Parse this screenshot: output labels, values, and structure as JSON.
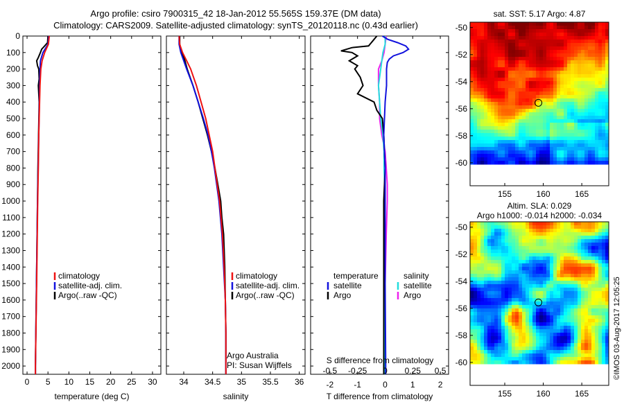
{
  "header": {
    "line1": "Argo profile: csiro 7900315_42 18-Jan-2012 55.565S 159.37E (DM data)",
    "line2": "Climatology: CARS2009. Satellite-adjusted climatology: synTS_20120118.nc (0.43d earlier)"
  },
  "colors": {
    "climatology": "#ee1111",
    "satellite": "#1111dd",
    "argo": "#000000",
    "sat_salinity": "#22dddd",
    "argo_salinity": "#ee22ee"
  },
  "chart_data": [
    {
      "type": "line",
      "name": "temperature-panel",
      "xlabel": "temperature (deg C)",
      "ylabel": "",
      "xlim": [
        -1,
        32
      ],
      "ylim": [
        2050,
        0
      ],
      "xticks": [
        0,
        5,
        10,
        15,
        20,
        25,
        30
      ],
      "yticks": [
        0,
        100,
        200,
        300,
        400,
        500,
        600,
        700,
        800,
        900,
        1000,
        1100,
        1200,
        1300,
        1400,
        1500,
        1600,
        1700,
        1800,
        1900,
        2000
      ],
      "legend": [
        "climatology",
        "satellite-adj. clim.",
        "Argo(..raw -QC)"
      ],
      "series": [
        {
          "name": "climatology",
          "depth": [
            0,
            50,
            100,
            150,
            200,
            300,
            400,
            600,
            800,
            1000,
            1500,
            2000,
            2050
          ],
          "values": [
            5.3,
            5.1,
            4.2,
            3.6,
            3.3,
            3.1,
            3.0,
            2.8,
            2.7,
            2.55,
            2.3,
            2.0,
            2.0
          ]
        },
        {
          "name": "satellite-adj. clim.",
          "depth": [
            0,
            50,
            100,
            150,
            200,
            300,
            400,
            600,
            800,
            1000,
            1500,
            2000,
            2050
          ],
          "values": [
            5.2,
            5.0,
            3.8,
            3.2,
            3.1,
            3.0,
            2.95,
            2.8,
            2.65,
            2.5,
            2.25,
            2.0,
            2.0
          ]
        },
        {
          "name": "Argo(..raw -QC)",
          "depth": [
            0,
            40,
            60,
            80,
            100,
            130,
            150,
            180,
            200,
            260,
            300,
            400,
            600,
            800,
            1000,
            1500,
            2000,
            2050
          ],
          "values": [
            5.0,
            4.9,
            4.2,
            3.5,
            3.2,
            2.7,
            2.3,
            2.5,
            2.8,
            2.9,
            2.7,
            2.9,
            2.75,
            2.6,
            2.5,
            2.25,
            2.0,
            2.0
          ]
        }
      ]
    },
    {
      "type": "line",
      "name": "salinity-panel",
      "xlabel": "salinity",
      "xlim": [
        33.7,
        36.1
      ],
      "ylim": [
        2050,
        0
      ],
      "xticks": [
        34,
        34.5,
        35,
        35.5,
        36
      ],
      "legend": [
        "climatology",
        "satellite-adj. clim.",
        "Argo(..raw -QC)"
      ],
      "note": [
        "Argo Australia",
        "PI: Susan Wijffels"
      ],
      "series": [
        {
          "name": "climatology",
          "depth": [
            0,
            50,
            100,
            150,
            200,
            300,
            400,
            500,
            600,
            700,
            800,
            900,
            1000,
            1200,
            1400,
            1600,
            1800,
            2000,
            2050
          ],
          "values": [
            33.92,
            33.93,
            33.98,
            34.05,
            34.12,
            34.22,
            34.3,
            34.38,
            34.44,
            34.5,
            34.54,
            34.58,
            34.62,
            34.67,
            34.7,
            34.72,
            34.73,
            34.73,
            34.73
          ]
        },
        {
          "name": "satellite-adj. clim.",
          "depth": [
            0,
            50,
            100,
            150,
            200,
            300,
            400,
            500,
            600,
            700,
            800,
            900,
            1000,
            1200,
            1400,
            1600,
            1800,
            2000,
            2050
          ],
          "values": [
            33.92,
            33.92,
            33.95,
            34.0,
            34.05,
            34.16,
            34.25,
            34.34,
            34.42,
            34.48,
            34.53,
            34.57,
            34.61,
            34.66,
            34.69,
            34.72,
            34.73,
            34.73,
            34.73
          ]
        },
        {
          "name": "Argo(..raw -QC)",
          "depth": [
            0,
            50,
            100,
            150,
            200,
            300,
            400,
            500,
            600,
            700,
            800,
            900,
            1000,
            1100,
            1200,
            1400,
            1600,
            1800,
            2000,
            2050
          ],
          "values": [
            33.93,
            33.93,
            33.97,
            34.02,
            34.06,
            34.16,
            34.25,
            34.33,
            34.41,
            34.48,
            34.54,
            34.59,
            34.64,
            34.66,
            34.69,
            34.71,
            34.72,
            34.73,
            34.73,
            34.73
          ]
        }
      ]
    },
    {
      "type": "line",
      "name": "difference-panel",
      "xlabel": "T difference from climatology",
      "xlabel2": "S difference from climatology",
      "xlim": [
        -2.7,
        2.3
      ],
      "ylim": [
        2050,
        0
      ],
      "xticks": [
        -2,
        -1,
        0,
        1,
        2
      ],
      "xticks2": [
        -0.5,
        -0.25,
        0,
        0.25,
        0.5
      ],
      "xticklabels2": [
        "-0.5",
        "-0.25",
        "0",
        "0.25",
        "0.5"
      ],
      "legend": {
        "temperature": [
          "satellite",
          "Argo"
        ],
        "salinity": [
          "satellite",
          "Argo"
        ]
      },
      "series": [
        {
          "name": "temperature satellite",
          "depth": [
            0,
            20,
            40,
            60,
            80,
            100,
            120,
            140,
            160,
            200,
            300,
            400,
            600,
            800,
            1000,
            1500,
            2000,
            2050
          ],
          "values": [
            -0.1,
            0.1,
            0.45,
            0.75,
            0.85,
            0.65,
            0.3,
            0.15,
            0.08,
            0.05,
            0.05,
            0.0,
            -0.05,
            0.0,
            0.0,
            0.0,
            0.02,
            0.02
          ]
        },
        {
          "name": "temperature Argo",
          "depth": [
            0,
            20,
            40,
            60,
            70,
            90,
            100,
            120,
            150,
            180,
            200,
            250,
            300,
            350,
            400,
            450,
            500,
            600,
            800,
            1000,
            1500,
            2000,
            2050
          ],
          "values": [
            -0.3,
            -0.4,
            -0.5,
            -0.6,
            -1.2,
            -1.6,
            -1.2,
            -1.0,
            -1.3,
            -1.0,
            -1.1,
            -0.9,
            -0.8,
            -1.0,
            -0.4,
            -0.3,
            -0.1,
            -0.05,
            0.0,
            -0.05,
            -0.05,
            -0.05,
            -0.05
          ]
        },
        {
          "name": "salinity satellite",
          "depth": [
            0,
            50,
            100,
            150,
            200,
            300,
            400,
            500,
            600,
            700,
            800,
            900,
            1000,
            1200,
            1500,
            2000,
            2050
          ],
          "values": [
            0.0,
            0.0,
            -0.02,
            -0.03,
            -0.04,
            -0.06,
            -0.05,
            -0.04,
            -0.02,
            -0.01,
            -0.01,
            -0.005,
            -0.005,
            0.0,
            0.0,
            0.0,
            0.0
          ]
        },
        {
          "name": "salinity Argo",
          "depth": [
            0,
            50,
            100,
            150,
            200,
            300,
            400,
            500,
            600,
            700,
            800,
            900,
            1000,
            1200,
            1500,
            2000,
            2050
          ],
          "values": [
            0.01,
            0.0,
            -0.01,
            -0.03,
            -0.06,
            -0.06,
            -0.05,
            -0.05,
            -0.03,
            0.0,
            0.01,
            0.02,
            0.02,
            0.01,
            0.0,
            0.0,
            0.0
          ]
        }
      ]
    },
    {
      "type": "heatmap",
      "name": "sst-map",
      "title": "sat. SST: 5.17 Argo: 4.87",
      "xticks": [
        155,
        160,
        165
      ],
      "yticks": [
        -50,
        -52,
        -54,
        -56,
        -58,
        -60
      ],
      "xlim": [
        150.5,
        168.5
      ],
      "ylim": [
        -61.7,
        -49.6
      ],
      "argo_position": [
        159.37,
        -55.565
      ]
    },
    {
      "type": "heatmap",
      "name": "sla-map",
      "title": "Altim. SLA: 0.029",
      "subtitle": "Argo h1000: -0.014 h2000: -0.034",
      "xticks": [
        155,
        160,
        165
      ],
      "yticks": [
        -50,
        -52,
        -54,
        -56,
        -58,
        -60
      ],
      "xlim": [
        150.5,
        168.5
      ],
      "ylim": [
        -61.7,
        -49.6
      ],
      "argo_position": [
        159.37,
        -55.565
      ]
    }
  ],
  "stamp": "©IMOS 03-Aug-2017 12:05:25"
}
